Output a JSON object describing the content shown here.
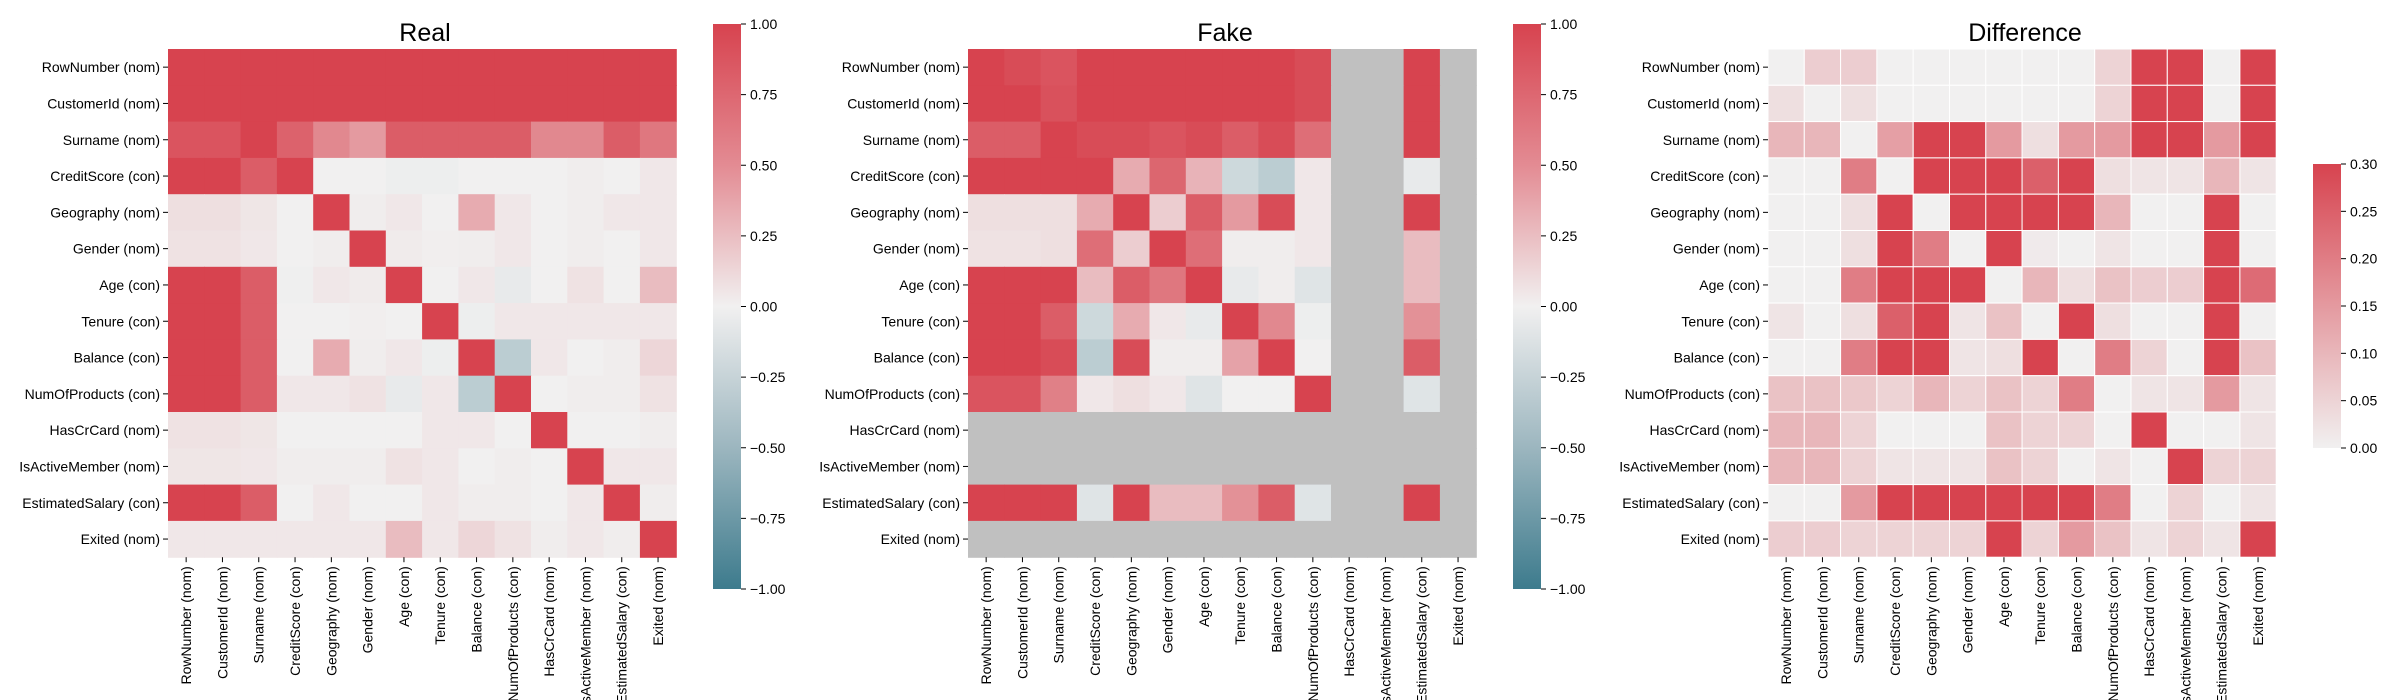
{
  "chart_data": [
    {
      "type": "heatmap",
      "title": "Real",
      "rows": [
        "RowNumber (nom)",
        "CustomerId (nom)",
        "Surname (nom)",
        "CreditScore (con)",
        "Geography (nom)",
        "Gender (nom)",
        "Age (con)",
        "Tenure (con)",
        "Balance (con)",
        "NumOfProducts (con)",
        "HasCrCard (nom)",
        "IsActiveMember (nom)",
        "EstimatedSalary (con)",
        "Exited (nom)"
      ],
      "columns": [
        "RowNumber (nom)",
        "CustomerId (nom)",
        "Surname (nom)",
        "CreditScore (con)",
        "Geography (nom)",
        "Gender (nom)",
        "Age (con)",
        "Tenure (con)",
        "Balance (con)",
        "NumOfProducts (con)",
        "HasCrCard (nom)",
        "IsActiveMember (nom)",
        "EstimatedSalary (con)",
        "Exited (nom)"
      ],
      "values": [
        [
          1.0,
          1.0,
          1.0,
          1.0,
          1.0,
          1.0,
          1.0,
          1.0,
          1.0,
          1.0,
          1.0,
          1.0,
          1.0,
          1.0
        ],
        [
          1.0,
          1.0,
          1.0,
          1.0,
          1.0,
          1.0,
          1.0,
          1.0,
          1.0,
          1.0,
          1.0,
          1.0,
          1.0,
          1.0
        ],
        [
          0.9,
          0.9,
          1.0,
          0.82,
          0.6,
          0.5,
          0.85,
          0.85,
          0.85,
          0.85,
          0.6,
          0.6,
          0.85,
          0.7
        ],
        [
          1.0,
          1.0,
          0.85,
          1.0,
          0.0,
          0.0,
          -0.02,
          -0.02,
          0.0,
          0.0,
          0.0,
          0.02,
          0.0,
          0.05
        ],
        [
          0.1,
          0.1,
          0.06,
          0.0,
          1.0,
          0.02,
          0.05,
          0.0,
          0.4,
          0.05,
          0.0,
          0.02,
          0.05,
          0.05
        ],
        [
          0.08,
          0.08,
          0.05,
          0.0,
          0.02,
          1.0,
          0.03,
          0.01,
          0.02,
          0.05,
          0.0,
          0.02,
          0.0,
          0.05
        ],
        [
          1.0,
          1.0,
          0.85,
          -0.01,
          0.05,
          0.03,
          1.0,
          0.0,
          0.05,
          -0.05,
          0.0,
          0.08,
          0.0,
          0.3
        ],
        [
          1.0,
          1.0,
          0.85,
          0.0,
          0.0,
          0.01,
          0.0,
          1.0,
          -0.02,
          0.05,
          0.05,
          0.05,
          0.05,
          0.05
        ],
        [
          1.0,
          1.0,
          0.85,
          0.0,
          0.4,
          0.02,
          0.05,
          -0.02,
          1.0,
          -0.3,
          0.05,
          0.0,
          0.02,
          0.15
        ],
        [
          1.0,
          1.0,
          0.85,
          0.05,
          0.05,
          0.08,
          -0.05,
          0.05,
          -0.3,
          1.0,
          0.0,
          0.02,
          0.02,
          0.08
        ],
        [
          0.08,
          0.08,
          0.06,
          0.0,
          0.0,
          0.0,
          0.0,
          0.05,
          0.05,
          0.0,
          1.0,
          0.0,
          0.0,
          0.02
        ],
        [
          0.06,
          0.06,
          0.05,
          0.02,
          0.02,
          0.02,
          0.08,
          0.05,
          0.0,
          0.02,
          0.0,
          1.0,
          0.05,
          0.05
        ],
        [
          1.0,
          1.0,
          0.85,
          0.0,
          0.05,
          0.0,
          0.0,
          0.05,
          0.02,
          0.02,
          0.0,
          0.05,
          1.0,
          0.02
        ],
        [
          0.05,
          0.05,
          0.05,
          0.05,
          0.05,
          0.05,
          0.3,
          0.05,
          0.15,
          0.08,
          0.02,
          0.05,
          0.02,
          1.0
        ]
      ],
      "colorbar": {
        "ticks": [
          "1.00",
          "0.75",
          "0.50",
          "0.25",
          "0.00",
          "−0.25",
          "−0.50",
          "−0.75",
          "−1.00"
        ],
        "vmin": -1.0,
        "vmax": 1.0
      },
      "missing_color": "#c0c0c0"
    },
    {
      "type": "heatmap",
      "title": "Fake",
      "rows": [
        "RowNumber (nom)",
        "CustomerId (nom)",
        "Surname (nom)",
        "CreditScore (con)",
        "Geography (nom)",
        "Gender (nom)",
        "Age (con)",
        "Tenure (con)",
        "Balance (con)",
        "NumOfProducts (con)",
        "HasCrCard (nom)",
        "IsActiveMember (nom)",
        "EstimatedSalary (con)",
        "Exited (nom)"
      ],
      "columns": [
        "RowNumber (nom)",
        "CustomerId (nom)",
        "Surname (nom)",
        "CreditScore (con)",
        "Geography (nom)",
        "Gender (nom)",
        "Age (con)",
        "Tenure (con)",
        "Balance (con)",
        "NumOfProducts (con)",
        "HasCrCard (nom)",
        "IsActiveMember (nom)",
        "EstimatedSalary (con)",
        "Exited (nom)"
      ],
      "values": [
        [
          1.0,
          0.95,
          0.9,
          1.0,
          1.0,
          1.0,
          1.0,
          1.0,
          1.0,
          0.95,
          null,
          null,
          1.0,
          null
        ],
        [
          1.0,
          1.0,
          0.92,
          1.0,
          1.0,
          1.0,
          1.0,
          1.0,
          1.0,
          0.95,
          null,
          null,
          1.0,
          null
        ],
        [
          0.85,
          0.85,
          1.0,
          0.95,
          0.95,
          0.9,
          0.95,
          0.85,
          0.95,
          0.75,
          null,
          null,
          1.0,
          null
        ],
        [
          1.0,
          1.0,
          1.0,
          1.0,
          0.4,
          0.8,
          0.35,
          -0.2,
          -0.3,
          0.05,
          null,
          null,
          -0.05,
          null
        ],
        [
          0.1,
          0.1,
          0.1,
          0.4,
          1.0,
          0.2,
          0.85,
          0.5,
          0.95,
          0.05,
          null,
          null,
          1.0,
          null
        ],
        [
          0.08,
          0.08,
          0.1,
          0.75,
          0.2,
          1.0,
          0.75,
          0.02,
          0.02,
          0.05,
          null,
          null,
          0.3,
          null
        ],
        [
          1.0,
          1.0,
          1.0,
          0.3,
          0.85,
          0.7,
          1.0,
          -0.05,
          0.02,
          -0.1,
          null,
          null,
          0.3,
          null
        ],
        [
          1.0,
          1.0,
          0.85,
          -0.2,
          0.4,
          0.05,
          -0.05,
          1.0,
          0.6,
          -0.02,
          null,
          null,
          0.55,
          null
        ],
        [
          1.0,
          1.0,
          0.95,
          -0.3,
          0.95,
          0.02,
          0.02,
          0.45,
          1.0,
          0.0,
          null,
          null,
          0.85,
          null
        ],
        [
          0.9,
          0.9,
          0.65,
          0.05,
          0.1,
          0.05,
          -0.1,
          0.0,
          0.0,
          1.0,
          null,
          null,
          -0.1,
          null
        ],
        [
          null,
          null,
          null,
          null,
          null,
          null,
          null,
          null,
          null,
          null,
          null,
          null,
          null,
          null
        ],
        [
          null,
          null,
          null,
          null,
          null,
          null,
          null,
          null,
          null,
          null,
          null,
          null,
          null,
          null
        ],
        [
          1.0,
          1.0,
          1.0,
          -0.1,
          1.0,
          0.3,
          0.3,
          0.55,
          0.85,
          -0.1,
          null,
          null,
          1.0,
          null
        ],
        [
          null,
          null,
          null,
          null,
          null,
          null,
          null,
          null,
          null,
          null,
          null,
          null,
          null,
          null
        ]
      ],
      "colorbar": {
        "ticks": [
          "1.00",
          "0.75",
          "0.50",
          "0.25",
          "0.00",
          "−0.25",
          "−0.50",
          "−0.75",
          "−1.00"
        ],
        "vmin": -1.0,
        "vmax": 1.0
      },
      "missing_color": "#c0c0c0"
    },
    {
      "type": "heatmap",
      "title": "Difference",
      "rows": [
        "RowNumber (nom)",
        "CustomerId (nom)",
        "Surname (nom)",
        "CreditScore (con)",
        "Geography (nom)",
        "Gender (nom)",
        "Age (con)",
        "Tenure (con)",
        "Balance (con)",
        "NumOfProducts (con)",
        "HasCrCard (nom)",
        "IsActiveMember (nom)",
        "EstimatedSalary (con)",
        "Exited (nom)"
      ],
      "columns": [
        "RowNumber (nom)",
        "CustomerId (nom)",
        "Surname (nom)",
        "CreditScore (con)",
        "Geography (nom)",
        "Gender (nom)",
        "Age (con)",
        "Tenure (con)",
        "Balance (con)",
        "NumOfProducts (con)",
        "HasCrCard (nom)",
        "IsActiveMember (nom)",
        "EstimatedSalary (con)",
        "Exited (nom)"
      ],
      "values": [
        [
          0.0,
          0.06,
          0.06,
          0.0,
          0.0,
          0.0,
          0.0,
          0.0,
          0.0,
          0.05,
          0.3,
          0.3,
          0.0,
          0.3
        ],
        [
          0.03,
          0.0,
          0.03,
          0.0,
          0.0,
          0.0,
          0.0,
          0.0,
          0.0,
          0.05,
          0.3,
          0.3,
          0.0,
          0.3
        ],
        [
          0.1,
          0.1,
          0.0,
          0.14,
          0.3,
          0.3,
          0.15,
          0.03,
          0.15,
          0.15,
          0.3,
          0.3,
          0.15,
          0.3
        ],
        [
          0.0,
          0.0,
          0.2,
          0.0,
          0.3,
          0.3,
          0.3,
          0.25,
          0.3,
          0.03,
          0.02,
          0.02,
          0.1,
          0.02
        ],
        [
          0.0,
          0.0,
          0.03,
          0.3,
          0.0,
          0.3,
          0.3,
          0.3,
          0.3,
          0.1,
          0.0,
          0.0,
          0.3,
          0.0
        ],
        [
          0.0,
          0.0,
          0.03,
          0.3,
          0.2,
          0.0,
          0.3,
          0.01,
          0.0,
          0.02,
          0.0,
          0.0,
          0.3,
          0.0
        ],
        [
          0.0,
          0.0,
          0.2,
          0.3,
          0.3,
          0.3,
          0.0,
          0.1,
          0.03,
          0.08,
          0.06,
          0.06,
          0.3,
          0.23
        ],
        [
          0.02,
          0.0,
          0.03,
          0.25,
          0.3,
          0.02,
          0.08,
          0.0,
          0.3,
          0.03,
          0.0,
          0.0,
          0.3,
          0.0
        ],
        [
          0.0,
          0.0,
          0.2,
          0.3,
          0.3,
          0.02,
          0.03,
          0.3,
          0.0,
          0.2,
          0.05,
          0.0,
          0.3,
          0.08
        ],
        [
          0.08,
          0.08,
          0.07,
          0.05,
          0.1,
          0.05,
          0.08,
          0.05,
          0.2,
          0.0,
          0.02,
          0.02,
          0.15,
          0.02
        ],
        [
          0.1,
          0.1,
          0.05,
          0.0,
          0.0,
          0.0,
          0.08,
          0.05,
          0.05,
          0.0,
          0.3,
          0.0,
          0.0,
          0.02
        ],
        [
          0.1,
          0.1,
          0.05,
          0.02,
          0.02,
          0.02,
          0.08,
          0.05,
          0.0,
          0.02,
          0.0,
          0.3,
          0.05,
          0.05
        ],
        [
          0.0,
          0.0,
          0.15,
          0.3,
          0.3,
          0.3,
          0.3,
          0.3,
          0.3,
          0.2,
          0.0,
          0.05,
          0.0,
          0.02
        ],
        [
          0.06,
          0.06,
          0.05,
          0.05,
          0.05,
          0.05,
          0.3,
          0.05,
          0.15,
          0.08,
          0.02,
          0.05,
          0.02,
          0.3
        ]
      ],
      "colorbar": {
        "ticks": [
          "0.30",
          "0.25",
          "0.20",
          "0.15",
          "0.10",
          "0.05",
          "0.00"
        ],
        "vmin": 0.0,
        "vmax": 0.3
      }
    }
  ]
}
